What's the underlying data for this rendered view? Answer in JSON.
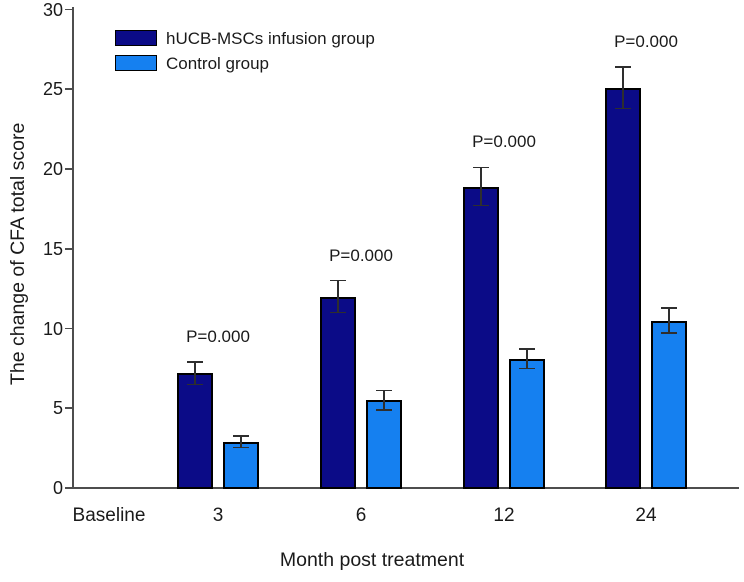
{
  "chart_data": {
    "type": "bar",
    "xlabel": "Month post treatment",
    "ylabel": "The change of CFA total score",
    "categories": [
      "Baseline",
      "3",
      "6",
      "12",
      "24"
    ],
    "series": [
      {
        "name": "hUCB-MSCs infusion group",
        "color": "#0b0b87",
        "values": [
          null,
          7.2,
          12.0,
          18.9,
          25.1
        ],
        "errors": [
          null,
          0.7,
          1.0,
          1.2,
          1.3
        ]
      },
      {
        "name": "Control group",
        "color": "#1580f0",
        "values": [
          null,
          2.9,
          5.5,
          8.1,
          10.5
        ],
        "errors": [
          null,
          0.35,
          0.6,
          0.6,
          0.8
        ]
      }
    ],
    "annotations": [
      {
        "category": "3",
        "text": "P=0.000"
      },
      {
        "category": "6",
        "text": "P=0.000"
      },
      {
        "category": "12",
        "text": "P=0.000"
      },
      {
        "category": "24",
        "text": "P=0.000"
      }
    ],
    "ylim": [
      0,
      30
    ],
    "yticks": [
      0,
      5,
      10,
      15,
      20,
      25,
      30
    ],
    "grid": false,
    "legend_position": "upper-left",
    "error_bars": true,
    "axis_color": "#4d4d4d",
    "bar_border_color": "#000000"
  }
}
